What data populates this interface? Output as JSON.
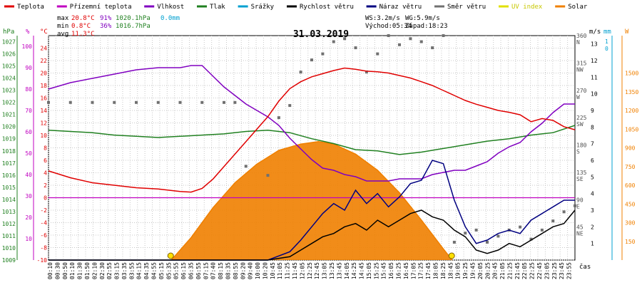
{
  "legend": [
    {
      "label": "Teplota",
      "color": "#e00000"
    },
    {
      "label": "Přízemní teplota",
      "color": "#c000c0"
    },
    {
      "label": "Vlhkost",
      "color": "#8000c0"
    },
    {
      "label": "Tlak",
      "color": "#208020"
    },
    {
      "label": "Srážky",
      "color": "#00a0d0"
    },
    {
      "label": "Rychlost větru",
      "color": "#000000"
    },
    {
      "label": "Náraz větru",
      "color": "#000080"
    },
    {
      "label": "Směr větru",
      "color": "#707070"
    },
    {
      "label": "UV index",
      "color": "#e0e000"
    },
    {
      "label": "Solar",
      "color": "#f08000"
    }
  ],
  "stats": {
    "max_label": "max",
    "max_temp": "20.8°C",
    "max_hum": "91%",
    "max_press": "1020.1hPa",
    "max_rain": "0.0mm",
    "min_label": "min",
    "min_temp": "0.8°C",
    "min_hum": "36%",
    "min_press": "1016.7hPa",
    "avg_label": "avg",
    "avg_temp": "11.3°C",
    "ws": "WS:3.2m/s",
    "wg": "WG:5.9m/s",
    "sunrise": "Východ:05:34",
    "sunset": "Západ:18:23"
  },
  "date": "31.03.2019",
  "time_unit": "čas",
  "axes": {
    "hpa": {
      "unit": "hPa",
      "color": "#208020",
      "ticks": [
        "1027",
        "1026",
        "1025",
        "1024",
        "1023",
        "1022",
        "1021",
        "1020",
        "1019",
        "1018",
        "1017",
        "1016",
        "1015",
        "1014",
        "1013",
        "1012",
        "1011",
        "1010",
        "1009"
      ]
    },
    "pct": {
      "unit": "%",
      "color": "#c000c0",
      "ticks": [
        "100",
        "90",
        "80",
        "70",
        "60",
        "50",
        "40",
        "30",
        "20",
        "10"
      ]
    },
    "celsius": {
      "unit": "°C",
      "color": "#e00000",
      "ticks": [
        "24",
        "22",
        "20",
        "18",
        "16",
        "14",
        "12",
        "10",
        "8",
        "6",
        "4",
        "2",
        "0",
        "-2",
        "-4",
        "-6",
        "-8",
        "-10"
      ]
    },
    "dir": {
      "ticks": [
        "360",
        "N",
        "315",
        "NW",
        "270",
        "W",
        "225",
        "SW",
        "180",
        "S",
        "135",
        "SE",
        "90",
        "E",
        "45",
        "NE"
      ]
    },
    "ms": {
      "unit": "m/s",
      "ticks": [
        "13",
        "12",
        "11",
        "10",
        "9",
        "8",
        "7",
        "6",
        "5",
        "4",
        "3",
        "2",
        "1"
      ]
    },
    "mm": {
      "unit": "mm",
      "color": "#00a0d0",
      "ticks": [
        "1",
        "0"
      ]
    },
    "watt": {
      "unit": "W",
      "color": "#f08000",
      "ticks": [
        "1500",
        "1350",
        "1200",
        "1050",
        "900",
        "750",
        "600",
        "450",
        "300",
        "150"
      ]
    }
  },
  "chart_data": {
    "type": "line",
    "title": "31.03.2019",
    "x_ticks": [
      "00:10",
      "00:30",
      "00:50",
      "01:10",
      "01:30",
      "01:50",
      "02:10",
      "02:30",
      "02:55",
      "03:15",
      "03:35",
      "03:55",
      "04:15",
      "04:35",
      "04:55",
      "05:15",
      "05:35",
      "05:55",
      "06:15",
      "06:35",
      "06:55",
      "07:15",
      "07:40",
      "08:15",
      "08:35",
      "08:55",
      "09:20",
      "09:40",
      "10:00",
      "10:20",
      "10:45",
      "11:05",
      "11:25",
      "11:45",
      "12:05",
      "12:25",
      "12:45",
      "13:05",
      "13:25",
      "13:45",
      "14:05",
      "14:25",
      "14:45",
      "15:05",
      "15:25",
      "15:45",
      "16:05",
      "16:25",
      "16:45",
      "17:05",
      "17:25",
      "17:45",
      "18:05",
      "18:25",
      "18:45",
      "19:05",
      "19:25",
      "19:45",
      "20:05",
      "20:25",
      "20:45",
      "21:05",
      "21:25",
      "21:45",
      "22:05",
      "22:25",
      "22:45",
      "23:05",
      "23:25",
      "23:45",
      "23:55"
    ],
    "x_range_hours": [
      0,
      24
    ],
    "sunrise_hour": 5.57,
    "sunset_hour": 18.38,
    "series": [
      {
        "name": "Teplota",
        "unit": "°C",
        "color": "#e00000",
        "x": [
          0,
          1,
          2,
          3,
          4,
          5,
          6,
          6.5,
          7,
          7.5,
          8,
          8.5,
          9,
          9.5,
          10,
          10.5,
          11,
          11.5,
          12,
          12.5,
          13,
          13.5,
          14,
          14.5,
          15,
          15.5,
          16,
          16.5,
          17,
          17.5,
          18,
          18.5,
          19,
          19.5,
          20,
          20.5,
          21,
          21.5,
          22,
          22.5,
          23,
          23.5,
          24
        ],
        "y": [
          4.3,
          3.2,
          2.4,
          2.0,
          1.6,
          1.4,
          1.0,
          0.9,
          1.5,
          3.0,
          5.0,
          7.0,
          9.0,
          11.0,
          13.0,
          15.5,
          17.5,
          18.6,
          19.4,
          19.9,
          20.4,
          20.8,
          20.6,
          20.3,
          20.2,
          20.0,
          19.6,
          19.2,
          18.6,
          18.0,
          17.2,
          16.4,
          15.6,
          15.0,
          14.5,
          14.0,
          13.7,
          13.3,
          12.2,
          12.7,
          12.4,
          11.4,
          10.9
        ]
      },
      {
        "name": "Vlhkost",
        "unit": "%",
        "color": "#8000c0",
        "x": [
          0,
          1,
          2,
          3,
          4,
          5,
          6,
          6.5,
          7,
          7.5,
          8,
          8.5,
          9,
          9.5,
          10,
          10.5,
          11,
          11.5,
          12,
          12.5,
          13,
          13.5,
          14,
          14.5,
          15,
          15.5,
          16,
          16.5,
          17,
          17.5,
          18,
          18.5,
          19,
          19.5,
          20,
          20.5,
          21,
          21.5,
          22,
          22.5,
          23,
          23.5,
          24
        ],
        "y": [
          80,
          83,
          85,
          87,
          89,
          90,
          90,
          91,
          91,
          86,
          81,
          77,
          73,
          70,
          67,
          63,
          57,
          52,
          47,
          43,
          42,
          40,
          39,
          37,
          37,
          37,
          38,
          38,
          38,
          40,
          41,
          42,
          42,
          44,
          46,
          50,
          53,
          55,
          60,
          64,
          69,
          73,
          73
        ]
      },
      {
        "name": "Tlak",
        "unit": "hPa",
        "color": "#208020",
        "x": [
          0,
          1,
          2,
          3,
          4,
          5,
          6,
          7,
          8,
          9,
          10,
          11,
          12,
          13,
          14,
          15,
          16,
          17,
          18,
          19,
          20,
          21,
          22,
          23,
          24
        ],
        "y": [
          1019.7,
          1019.6,
          1019.5,
          1019.3,
          1019.2,
          1019.1,
          1019.2,
          1019.3,
          1019.4,
          1019.6,
          1019.7,
          1019.5,
          1019.0,
          1018.6,
          1018.1,
          1018.0,
          1017.7,
          1017.9,
          1018.2,
          1018.5,
          1018.8,
          1019.0,
          1019.3,
          1019.5,
          1020.1
        ]
      },
      {
        "name": "Přízemní teplota",
        "unit": "°C",
        "color": "#c000c0",
        "x": [
          0,
          24
        ],
        "y": [
          0,
          0
        ]
      },
      {
        "name": "Solar",
        "unit": "W/m2",
        "color": "#f08000",
        "x": [
          5.6,
          6.5,
          7.5,
          8.5,
          9.5,
          10.5,
          11.5,
          12.3,
          13.0,
          14.0,
          15.0,
          16.0,
          17.0,
          18.0,
          18.4
        ],
        "y": [
          0,
          180,
          420,
          620,
          770,
          880,
          930,
          950,
          930,
          850,
          720,
          540,
          320,
          90,
          0
        ]
      },
      {
        "name": "Rychlost větru",
        "unit": "m/s",
        "color": "#000000",
        "x": [
          0,
          10,
          11,
          11.5,
          12,
          12.5,
          13,
          13.5,
          14,
          14.5,
          15,
          15.5,
          16,
          16.5,
          17,
          17.5,
          18,
          18.5,
          19,
          19.5,
          20,
          20.5,
          21,
          21.5,
          22,
          22.5,
          23,
          23.5,
          24
        ],
        "y": [
          0,
          0,
          0.2,
          0.6,
          1.0,
          1.4,
          1.6,
          2.0,
          2.2,
          1.8,
          2.4,
          2.0,
          2.4,
          2.8,
          3.0,
          2.6,
          2.4,
          1.8,
          1.4,
          0.6,
          0.4,
          0.6,
          1.0,
          0.8,
          1.2,
          1.6,
          2.0,
          2.2,
          3.0
        ]
      },
      {
        "name": "Náraz větru",
        "unit": "m/s",
        "color": "#000080",
        "x": [
          0,
          10,
          11,
          11.5,
          12,
          12.5,
          13,
          13.5,
          14,
          14.5,
          15,
          15.5,
          16,
          16.5,
          17,
          17.5,
          18,
          18.5,
          19,
          19.5,
          20,
          20.5,
          21,
          21.5,
          22,
          22.5,
          23,
          23.5,
          24
        ],
        "y": [
          0,
          0,
          0.5,
          1.2,
          2.0,
          2.8,
          3.4,
          3.0,
          4.2,
          3.4,
          4.0,
          3.2,
          3.8,
          4.6,
          4.8,
          6.0,
          5.8,
          3.6,
          2.0,
          1.0,
          1.2,
          1.6,
          1.8,
          1.6,
          2.4,
          2.8,
          3.2,
          3.6,
          3.6
        ]
      },
      {
        "name": "Směr větru",
        "unit": "°",
        "color": "#707070",
        "x": [
          0,
          1,
          2,
          3,
          4,
          5,
          6,
          7,
          8,
          8.5,
          9,
          10,
          10.5,
          11,
          11.5,
          12,
          12.5,
          13,
          13.5,
          14,
          14.5,
          15,
          15.5,
          16,
          16.5,
          17,
          17.5,
          18,
          18.5,
          19,
          19.5,
          20,
          20.5,
          21,
          21.5,
          22,
          22.5,
          23,
          23.5,
          24
        ],
        "y": [
          250,
          250,
          250,
          250,
          250,
          250,
          250,
          250,
          250,
          250,
          145,
          130,
          225,
          245,
          300,
          320,
          330,
          350,
          355,
          340,
          300,
          330,
          360,
          345,
          355,
          350,
          340,
          360,
          20,
          35,
          40,
          20,
          30,
          40,
          45,
          25,
          40,
          55,
          70,
          80
        ]
      }
    ]
  }
}
